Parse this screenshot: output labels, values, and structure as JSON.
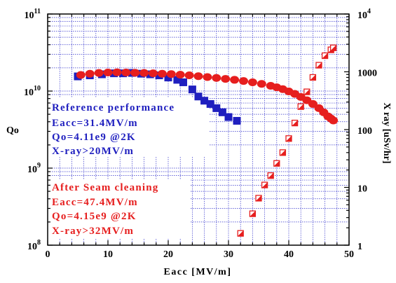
{
  "chart_data": {
    "type": "scatter",
    "xlabel": "Eacc [MV/m]",
    "ylabel": "Qo",
    "y2label": "X ray [uSv/hr]",
    "xlim": [
      0,
      50
    ],
    "ylim": [
      100000000.0,
      100000000000.0
    ],
    "y2lim": [
      1,
      10000
    ],
    "yscale": "log",
    "y2scale": "log",
    "grid": true,
    "x_ticks": [
      "0",
      "10",
      "20",
      "30",
      "40",
      "50"
    ],
    "y_ticks": [
      {
        "base": "10",
        "exp": "8"
      },
      {
        "base": "10",
        "exp": "9"
      },
      {
        "base": "10",
        "exp": "10"
      },
      {
        "base": "10",
        "exp": "11"
      }
    ],
    "y2_ticks": [
      {
        "text": "1"
      },
      {
        "text": "10"
      },
      {
        "text": "100"
      },
      {
        "text": "1000"
      },
      {
        "base": "10",
        "exp": "4"
      }
    ],
    "series": [
      {
        "axis": "left",
        "color": "#1f1fbf",
        "marker": "square-filled",
        "x": [
          5,
          7,
          9,
          11,
          12.5,
          14,
          15.5,
          17,
          18.5,
          20,
          21.5,
          22.5,
          24,
          25,
          26,
          27,
          28,
          29,
          30,
          31.4
        ],
        "y": [
          15500000000.0,
          16000000000.0,
          16500000000.0,
          17000000000.0,
          17000000000.0,
          17200000000.0,
          16800000000.0,
          16500000000.0,
          16000000000.0,
          15000000000.0,
          14000000000.0,
          13000000000.0,
          10500000000.0,
          8500000000.0,
          7500000000.0,
          6800000000.0,
          6000000000.0,
          5300000000.0,
          4600000000.0,
          4110000000.0
        ]
      },
      {
        "axis": "left",
        "color": "#e61e1e",
        "marker": "circle-filled",
        "x": [
          5.5,
          7,
          8.5,
          10,
          11.5,
          13,
          14.5,
          16,
          17.5,
          19,
          20.5,
          22,
          23.5,
          25,
          26.5,
          28,
          29.5,
          31,
          32.5,
          34,
          35.5,
          37,
          38,
          39,
          40,
          41,
          42,
          43,
          44,
          45,
          45.8,
          46.5,
          47,
          47.4
        ],
        "y": [
          16200000000.0,
          16800000000.0,
          17200000000.0,
          17400000000.0,
          17500000000.0,
          17400000000.0,
          17300000000.0,
          17200000000.0,
          17000000000.0,
          16800000000.0,
          16600000000.0,
          16300000000.0,
          16000000000.0,
          15600000000.0,
          15200000000.0,
          14800000000.0,
          14400000000.0,
          14000000000.0,
          13500000000.0,
          13000000000.0,
          12400000000.0,
          11700000000.0,
          11200000000.0,
          10600000000.0,
          9900000000.0,
          9200000000.0,
          8400000000.0,
          7600000000.0,
          6800000000.0,
          6000000000.0,
          5300000000.0,
          4700000000.0,
          4400000000.0,
          4150000000.0
        ]
      },
      {
        "axis": "right",
        "color": "#e61e1e",
        "marker": "square-half",
        "x": [
          32,
          34,
          35,
          36,
          37,
          38,
          39,
          40,
          41,
          42,
          43,
          44,
          45,
          46,
          47,
          47.4
        ],
        "y": [
          1.6,
          3.5,
          6.5,
          11,
          16,
          26,
          40,
          70,
          130,
          250,
          450,
          800,
          1300,
          1900,
          2400,
          2600
        ]
      }
    ]
  },
  "annotations": {
    "reference": {
      "color": "#1f1fbf",
      "lines": [
        "Reference performance",
        "Eacc=31.4MV/m",
        "Qo=4.11e9 @2K",
        "X-ray>20MV/m"
      ]
    },
    "seam": {
      "color": "#e61e1e",
      "lines": [
        "After Seam cleaning",
        "Eacc=47.4MV/m",
        "Qo=4.15e9 @2K",
        "X-ray>32MV/m"
      ]
    }
  }
}
